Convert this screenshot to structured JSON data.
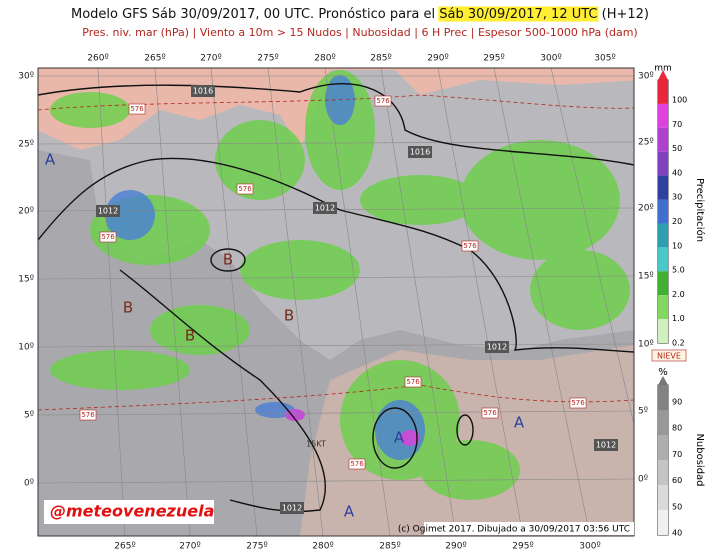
{
  "header": {
    "title_parts": [
      "Modelo GFS Sáb 30/09/2017, 00 UTC. Pronóstico para el ",
      "Sáb 30/09/2017, 12 UTC",
      " (H+12)"
    ],
    "subtitle": "Pres. niv. mar (hPa) | Viento a 10m > 15 Nudos | Nubosidad | 6 H Prec | Espesor 500-1000 hPa (dam)"
  },
  "map": {
    "lon_top": [
      "260º",
      "265º",
      "270º",
      "275º",
      "280º",
      "285º",
      "290º",
      "295º",
      "300º",
      "305º"
    ],
    "lon_bottom": [
      "265º",
      "270º",
      "275º",
      "280º",
      "285º",
      "290º",
      "295º",
      "300º"
    ],
    "lat_left": [
      "30º",
      "25º",
      "20º",
      "15º",
      "10º",
      "5º",
      "0º"
    ],
    "lat_right": [
      "30º",
      "25º",
      "20º",
      "15º",
      "10º",
      "5º",
      "0º"
    ],
    "isobar_labels": [
      "1016",
      "1016",
      "1012",
      "1012",
      "1012",
      "1012",
      "1012"
    ],
    "centers": [
      "A",
      "B",
      "B",
      "B",
      "B",
      "A",
      "A",
      "A"
    ],
    "thickness_labels": [
      "576",
      "576",
      "576",
      "576",
      "576",
      "576",
      "576",
      "576",
      "576",
      "576"
    ],
    "wind_label": "15KT",
    "watermark": "@meteovenezuela",
    "credit": "(c) Ogimet 2017. Dibujado a 30/09/2017 03:56 UTC"
  },
  "legend": {
    "precip_unit": "mm",
    "precip_title": "Precipitación",
    "precip_levels": [
      "100",
      "70",
      "50",
      "40",
      "30",
      "20",
      "10",
      "5.0",
      "2.0",
      "1.0",
      "0.2"
    ],
    "snow": "NIEVE",
    "cloud_unit": "%",
    "cloud_title": "Nubosidad",
    "cloud_levels": [
      "90",
      "80",
      "70",
      "60",
      "50",
      "40"
    ]
  }
}
